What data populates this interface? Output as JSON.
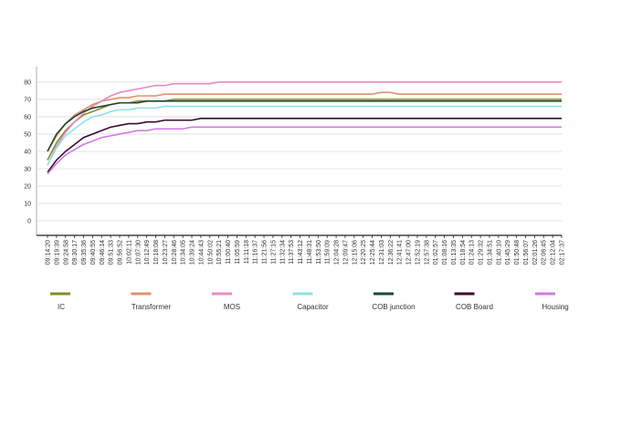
{
  "chart_data": {
    "type": "line",
    "categories": [
      "09:14:20",
      "09:19:39",
      "09:24:58",
      "09:30:17",
      "09:35:36",
      "09:40:55",
      "09:46:14",
      "09:51:33",
      "09:56:52",
      "10:02:11",
      "10:07:30",
      "10:12:49",
      "10:18:08",
      "10:23:27",
      "10:28:46",
      "10:34:05",
      "10:39:24",
      "10:44:43",
      "10:50:02",
      "10:55:21",
      "11:00:40",
      "11:05:59",
      "11:11:18",
      "11:16:37",
      "11:21:56",
      "11:27:15",
      "11:32:34",
      "11:37:53",
      "11:43:12",
      "11:48:31",
      "11:53:50",
      "11:59:09",
      "12:04:28",
      "12:09:47",
      "12:15:06",
      "12:20:25",
      "12:25:44",
      "12:31:03",
      "12:36:22",
      "12:41:41",
      "12:47:00",
      "12:52:19",
      "12:57:38",
      "01:02:57",
      "01:08:16",
      "01:13:35",
      "01:18:54",
      "01:24:13",
      "01:29:32",
      "01:34:51",
      "01:40:10",
      "01:45:29",
      "01:50:48",
      "01:56:07",
      "02:01:26",
      "02:06:45",
      "02:12:04",
      "02:17:37"
    ],
    "series": [
      {
        "name": "IC",
        "color": "#8a8a2a",
        "values": [
          35,
          45,
          52,
          57,
          61,
          63,
          65,
          67,
          68,
          68,
          69,
          69,
          69,
          69,
          70,
          70,
          70,
          70,
          70,
          70,
          70,
          70,
          70,
          70,
          70,
          70,
          70,
          70,
          70,
          70,
          70,
          70,
          70,
          70,
          70,
          70,
          70,
          70,
          70,
          70,
          70,
          70,
          70,
          70,
          70,
          70,
          70,
          70,
          70,
          70,
          70,
          70,
          70,
          70,
          70,
          70,
          70,
          70
        ]
      },
      {
        "name": "Transformer",
        "color": "#e0906a",
        "values": [
          40,
          49,
          56,
          61,
          64,
          67,
          69,
          70,
          71,
          71,
          72,
          72,
          72,
          73,
          73,
          73,
          73,
          73,
          73,
          73,
          73,
          73,
          73,
          73,
          73,
          73,
          73,
          73,
          73,
          73,
          73,
          73,
          73,
          73,
          73,
          73,
          73,
          74,
          74,
          73,
          73,
          73,
          73,
          73,
          73,
          73,
          73,
          73,
          73,
          73,
          73,
          73,
          73,
          73,
          73,
          73,
          73,
          73
        ]
      },
      {
        "name": "MOS",
        "color": "#e58cc4",
        "values": [
          32,
          43,
          51,
          57,
          62,
          66,
          69,
          72,
          74,
          75,
          76,
          77,
          78,
          78,
          79,
          79,
          79,
          79,
          79,
          80,
          80,
          80,
          80,
          80,
          80,
          80,
          80,
          80,
          80,
          80,
          80,
          80,
          80,
          80,
          80,
          80,
          80,
          80,
          80,
          80,
          80,
          80,
          80,
          80,
          80,
          80,
          80,
          80,
          80,
          80,
          80,
          80,
          80,
          80,
          80,
          80,
          80,
          80
        ]
      },
      {
        "name": "Capacitor",
        "color": "#8fe3e3",
        "values": [
          32,
          42,
          49,
          53,
          57,
          60,
          61,
          63,
          64,
          64,
          65,
          65,
          65,
          66,
          66,
          66,
          66,
          66,
          66,
          66,
          66,
          66,
          66,
          66,
          66,
          66,
          66,
          66,
          66,
          66,
          66,
          66,
          66,
          66,
          66,
          66,
          66,
          66,
          66,
          66,
          66,
          66,
          66,
          66,
          66,
          66,
          66,
          66,
          66,
          66,
          66,
          66,
          66,
          66,
          66,
          66,
          66,
          66
        ]
      },
      {
        "name": "COB  junction",
        "color": "#1b4a3a",
        "values": [
          40,
          50,
          56,
          60,
          63,
          65,
          66,
          67,
          68,
          68,
          68,
          69,
          69,
          69,
          69,
          69,
          69,
          69,
          69,
          69,
          69,
          69,
          69,
          69,
          69,
          69,
          69,
          69,
          69,
          69,
          69,
          69,
          69,
          69,
          69,
          69,
          69,
          69,
          69,
          69,
          69,
          69,
          69,
          69,
          69,
          69,
          69,
          69,
          69,
          69,
          69,
          69,
          69,
          69,
          69,
          69,
          69,
          69
        ]
      },
      {
        "name": "COB Board",
        "color": "#3a0a30",
        "values": [
          28,
          35,
          40,
          44,
          48,
          50,
          52,
          54,
          55,
          56,
          56,
          57,
          57,
          58,
          58,
          58,
          58,
          59,
          59,
          59,
          59,
          59,
          59,
          59,
          59,
          59,
          59,
          59,
          59,
          59,
          59,
          59,
          59,
          59,
          59,
          59,
          59,
          59,
          59,
          59,
          59,
          59,
          59,
          59,
          59,
          59,
          59,
          59,
          59,
          59,
          59,
          59,
          59,
          59,
          59,
          59,
          59,
          59
        ]
      },
      {
        "name": "Housing",
        "color": "#d27ae2",
        "values": [
          27,
          33,
          38,
          41,
          44,
          46,
          48,
          49,
          50,
          51,
          52,
          52,
          53,
          53,
          53,
          53,
          54,
          54,
          54,
          54,
          54,
          54,
          54,
          54,
          54,
          54,
          54,
          54,
          54,
          54,
          54,
          54,
          54,
          54,
          54,
          54,
          54,
          54,
          54,
          54,
          54,
          54,
          54,
          54,
          54,
          54,
          54,
          54,
          54,
          54,
          54,
          54,
          54,
          54,
          54,
          54,
          54,
          54
        ]
      }
    ],
    "ylim": [
      -8.4,
      88.9
    ],
    "yticks": [
      0,
      10,
      20,
      30,
      40,
      50,
      60,
      70,
      80
    ],
    "grid": true
  }
}
